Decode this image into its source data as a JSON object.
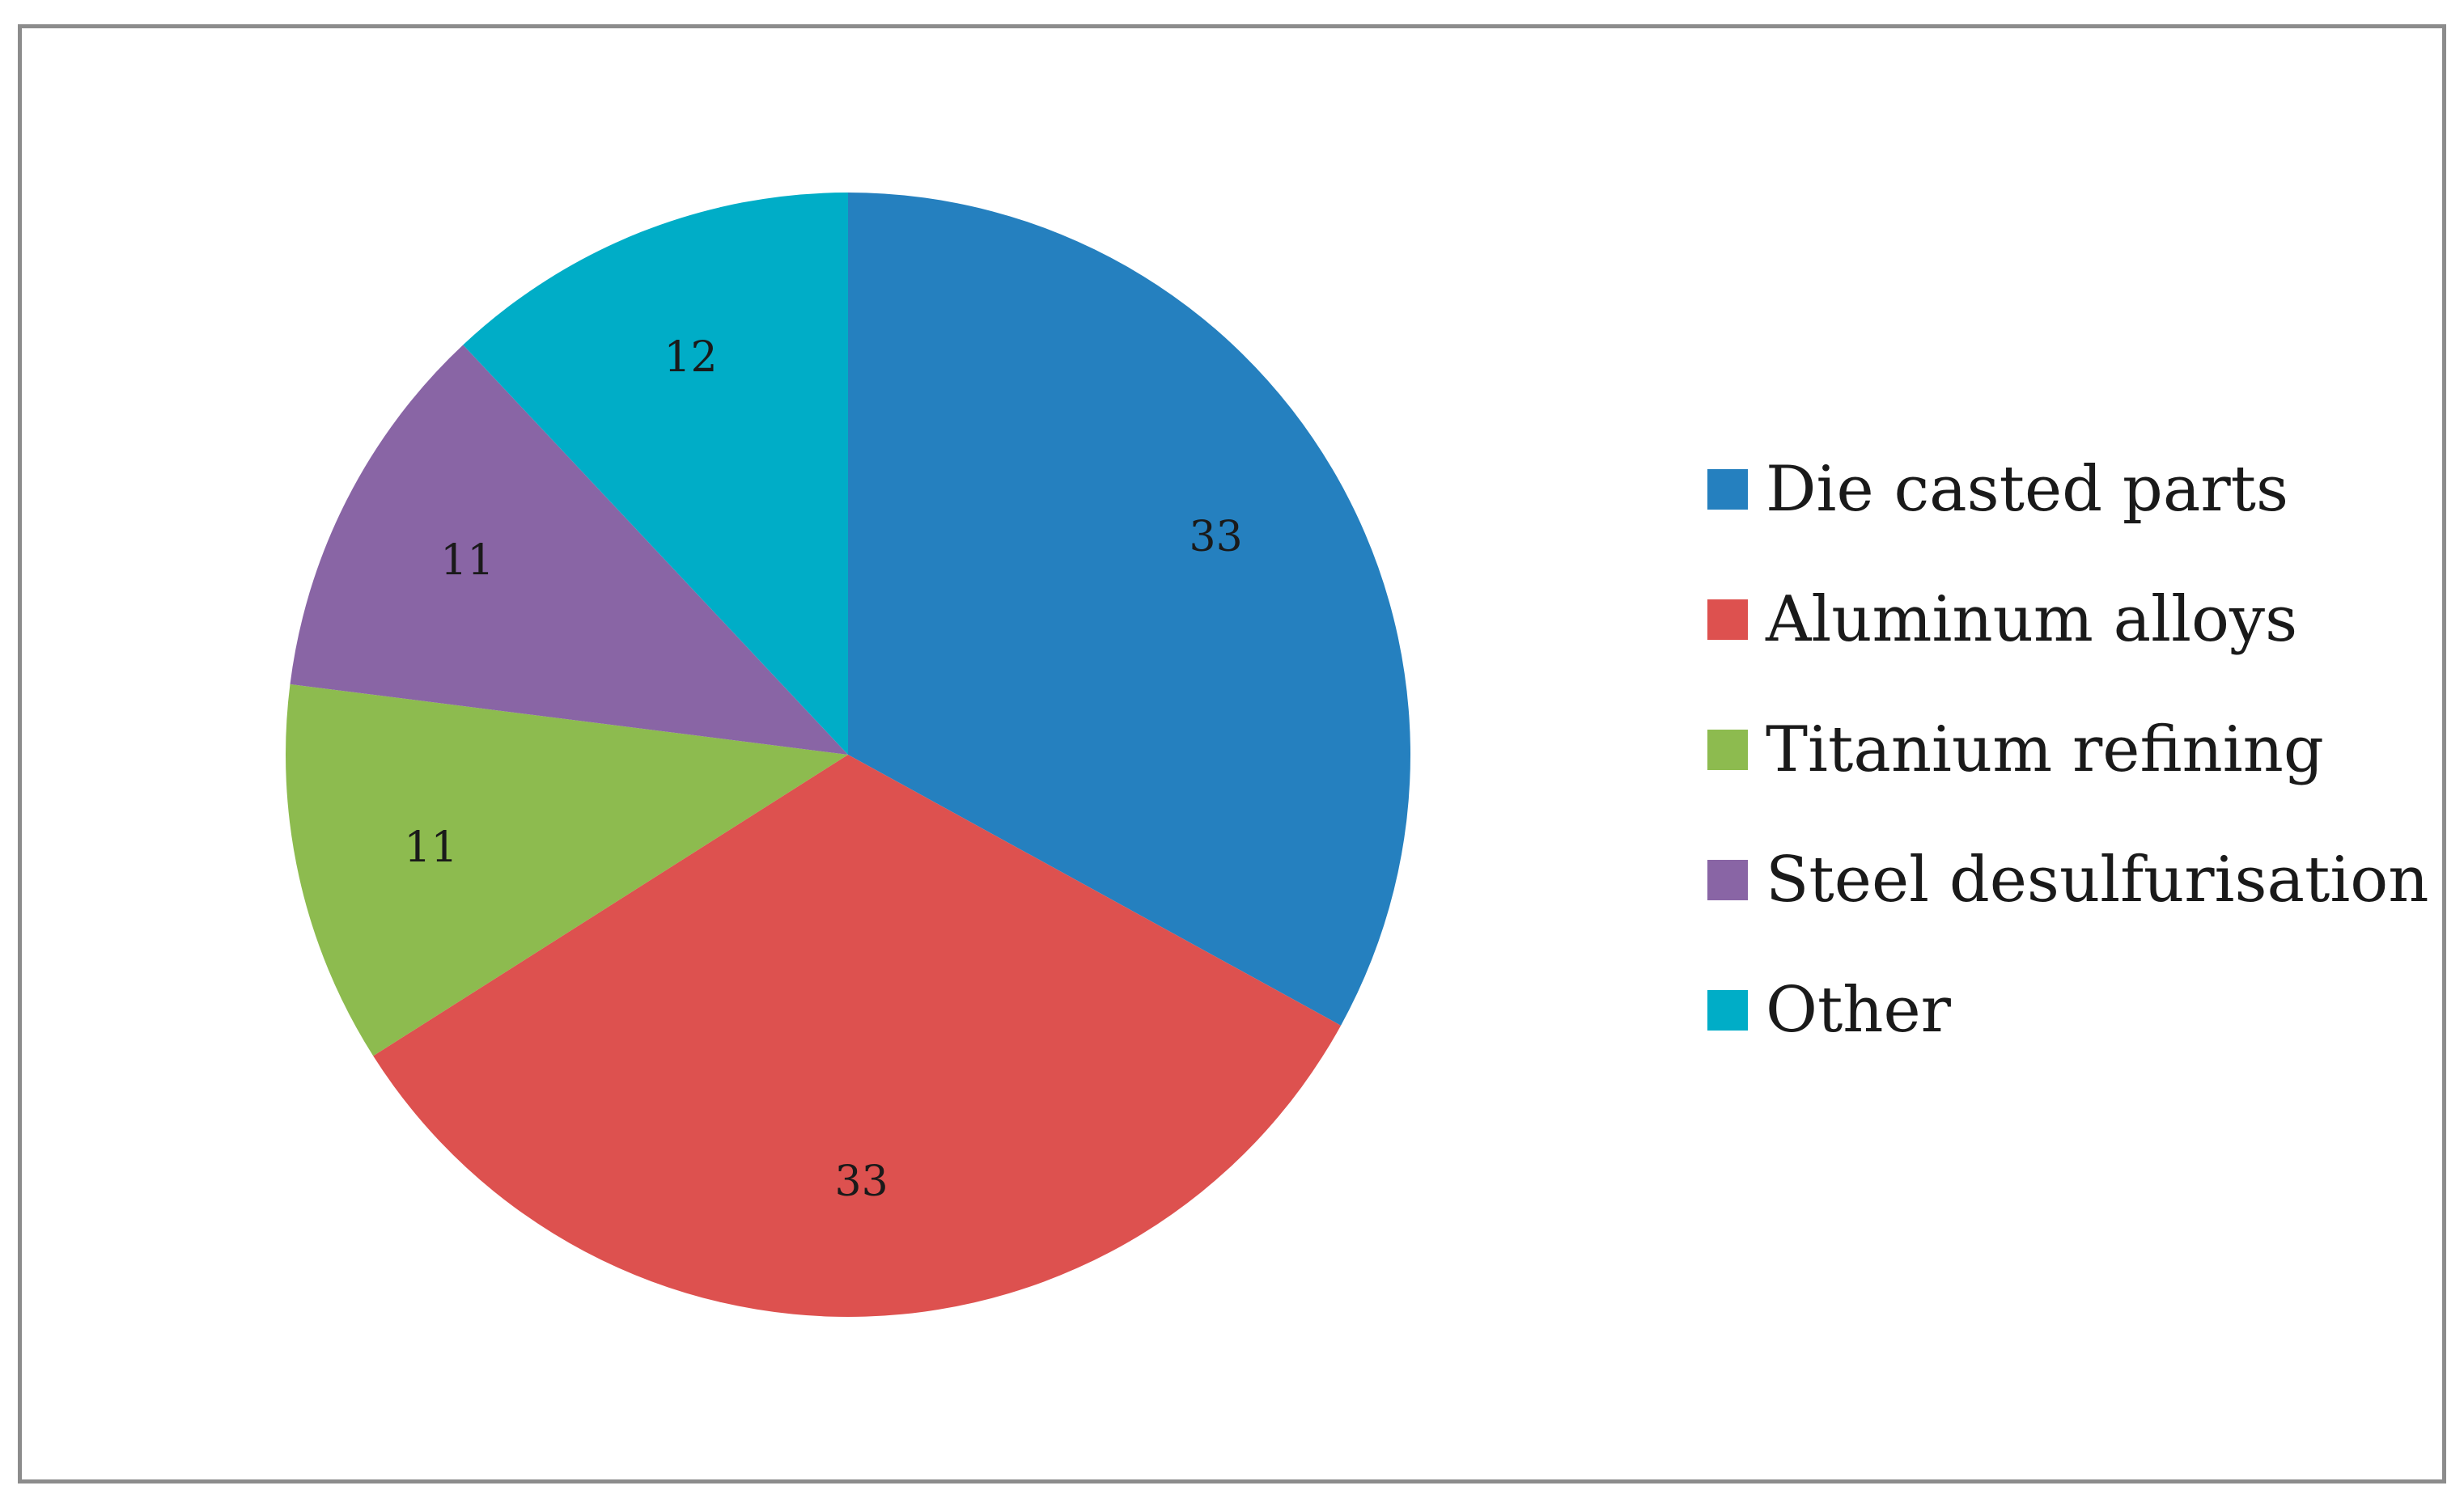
{
  "chart_data": {
    "type": "pie",
    "title": "",
    "categories": [
      "Die casted parts",
      "Aluminum alloys",
      "Titanium refining",
      "Steel desulfurisation",
      "Other"
    ],
    "values": [
      33,
      33,
      11,
      11,
      12
    ],
    "data_labels": [
      "33",
      "33",
      "11",
      "11",
      "12"
    ],
    "colors": [
      "#2580bf",
      "#dd514f",
      "#8dbb4f",
      "#8965a5",
      "#00adc7"
    ],
    "start_angle_deg": 0,
    "direction": "clockwise",
    "legend_position": "right",
    "legend_entries": [
      {
        "label": "Die casted parts",
        "color": "#2580bf"
      },
      {
        "label": "Aluminum alloys",
        "color": "#dd514f"
      },
      {
        "label": "Titanium refining",
        "color": "#8dbb4f"
      },
      {
        "label": "Steel desulfurisation",
        "color": "#8965a5"
      },
      {
        "label": "Other",
        "color": "#00adc7"
      }
    ]
  }
}
